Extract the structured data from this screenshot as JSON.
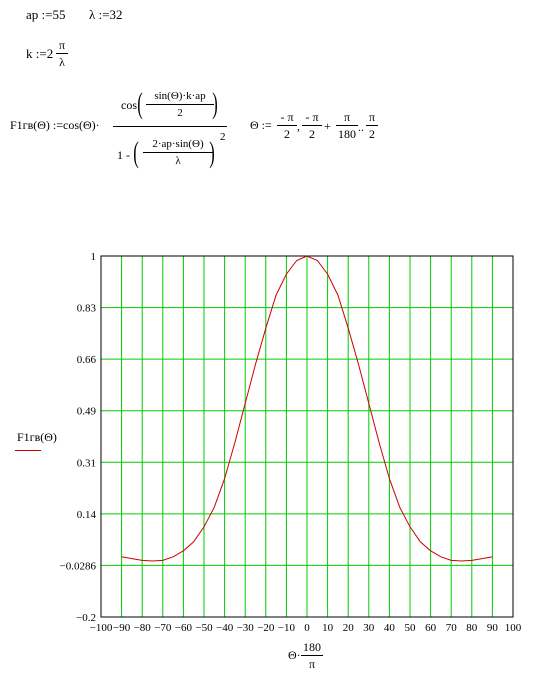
{
  "defs": {
    "ap": "ap :=55",
    "lambda": "λ :=32"
  },
  "k_def": {
    "lhs": "k :=2",
    "num": "π",
    "den": "λ"
  },
  "f_def": {
    "lhs": "F1гв(Θ) :=cos(Θ)·",
    "top_cos": "cos",
    "top_inner_num": "sin(Θ)·k·ap",
    "top_inner_den": "2",
    "bot_one_minus": "1 -",
    "bot_inner_num": "2·ap·sin(Θ)",
    "bot_inner_den": "λ",
    "exponent": "2"
  },
  "theta_def": {
    "lhs": "Θ :=",
    "t1_num": "- π",
    "t1_den": "2",
    "sep1": ",",
    "t2_num": "- π",
    "t2_den": "2",
    "plus": "+",
    "t3_num": "π",
    "t3_den": "180",
    "range": "..",
    "t4_num": "π",
    "t4_den": "2"
  },
  "plot": {
    "ylabel": "F1гв(Θ)",
    "xlabel_prefix": "Θ·",
    "xlabel_num": "180",
    "xlabel_den": "π",
    "y_ticks": [
      "1",
      "0.83",
      "0.66",
      "0.49",
      "0.31",
      "0.14",
      "−0.0286",
      "−0.2"
    ],
    "x_ticks": [
      "−100",
      "−90",
      "−80",
      "−70",
      "−60",
      "−50",
      "−40",
      "−30",
      "−20",
      "−10",
      "0",
      "10",
      "20",
      "30",
      "40",
      "50",
      "60",
      "70",
      "80",
      "90",
      "100"
    ],
    "colors": {
      "grid": "#00cc00",
      "trace": "#cc0000",
      "frame": "#000000"
    }
  },
  "chart_data": {
    "type": "line",
    "title": "",
    "xlabel": "Θ·180/π",
    "ylabel": "F1гв(Θ)",
    "xlim": [
      -100,
      100
    ],
    "ylim": [
      -0.2,
      1
    ],
    "grid": true,
    "series": [
      {
        "name": "F1гв(Θ)",
        "x": [
          -90,
          -85,
          -80,
          -75,
          -70,
          -65,
          -60,
          -55,
          -50,
          -45,
          -40,
          -35,
          -30,
          -25,
          -20,
          -15,
          -10,
          -5,
          0,
          5,
          10,
          15,
          20,
          25,
          30,
          35,
          40,
          45,
          50,
          55,
          60,
          65,
          70,
          75,
          80,
          85,
          90
        ],
        "y": [
          0.0,
          -0.006,
          -0.012,
          -0.014,
          -0.012,
          0.0,
          0.02,
          0.05,
          0.1,
          0.165,
          0.26,
          0.38,
          0.51,
          0.64,
          0.76,
          0.87,
          0.94,
          0.985,
          1.0,
          0.985,
          0.94,
          0.87,
          0.76,
          0.64,
          0.51,
          0.38,
          0.26,
          0.165,
          0.1,
          0.05,
          0.02,
          0.0,
          -0.012,
          -0.014,
          -0.012,
          -0.006,
          0.0
        ]
      }
    ]
  }
}
